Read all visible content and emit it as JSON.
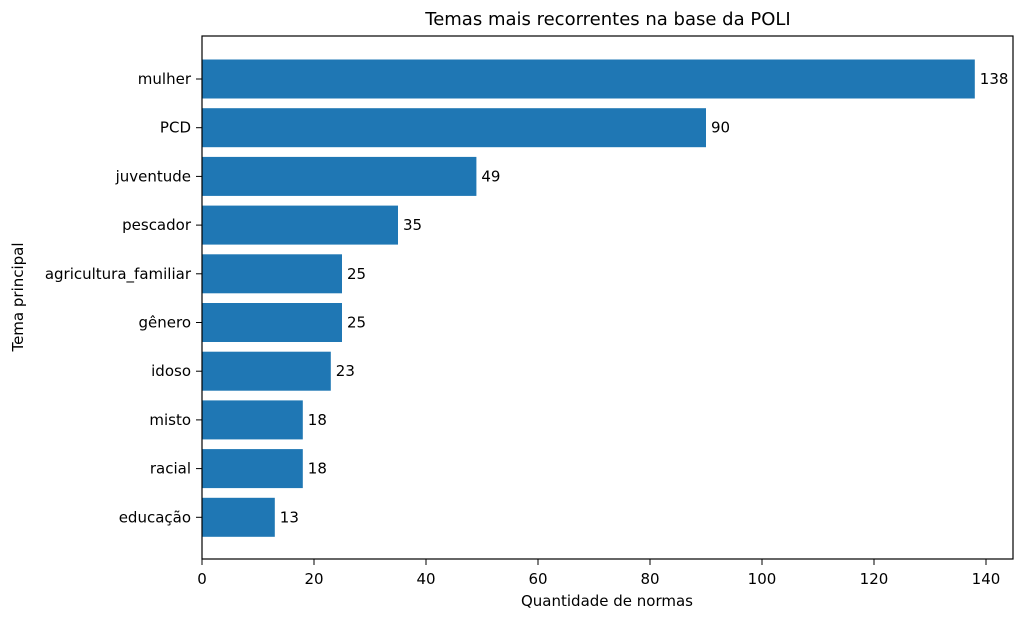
{
  "chart_data": {
    "type": "bar",
    "orientation": "horizontal",
    "title": "Temas mais recorrentes na base da POLI",
    "xlabel": "Quantidade de normas",
    "ylabel": "Tema principal",
    "categories": [
      "mulher",
      "PCD",
      "juventude",
      "pescador",
      "agricultura_familiar",
      "gênero",
      "idoso",
      "misto",
      "racial",
      "educação"
    ],
    "values": [
      138,
      90,
      49,
      35,
      25,
      25,
      23,
      18,
      18,
      13
    ],
    "xlim": [
      0,
      145
    ],
    "xticks": [
      0,
      20,
      40,
      60,
      80,
      100,
      120,
      140
    ],
    "grid": false,
    "legend": "none",
    "bar_color": "#1f77b4"
  }
}
